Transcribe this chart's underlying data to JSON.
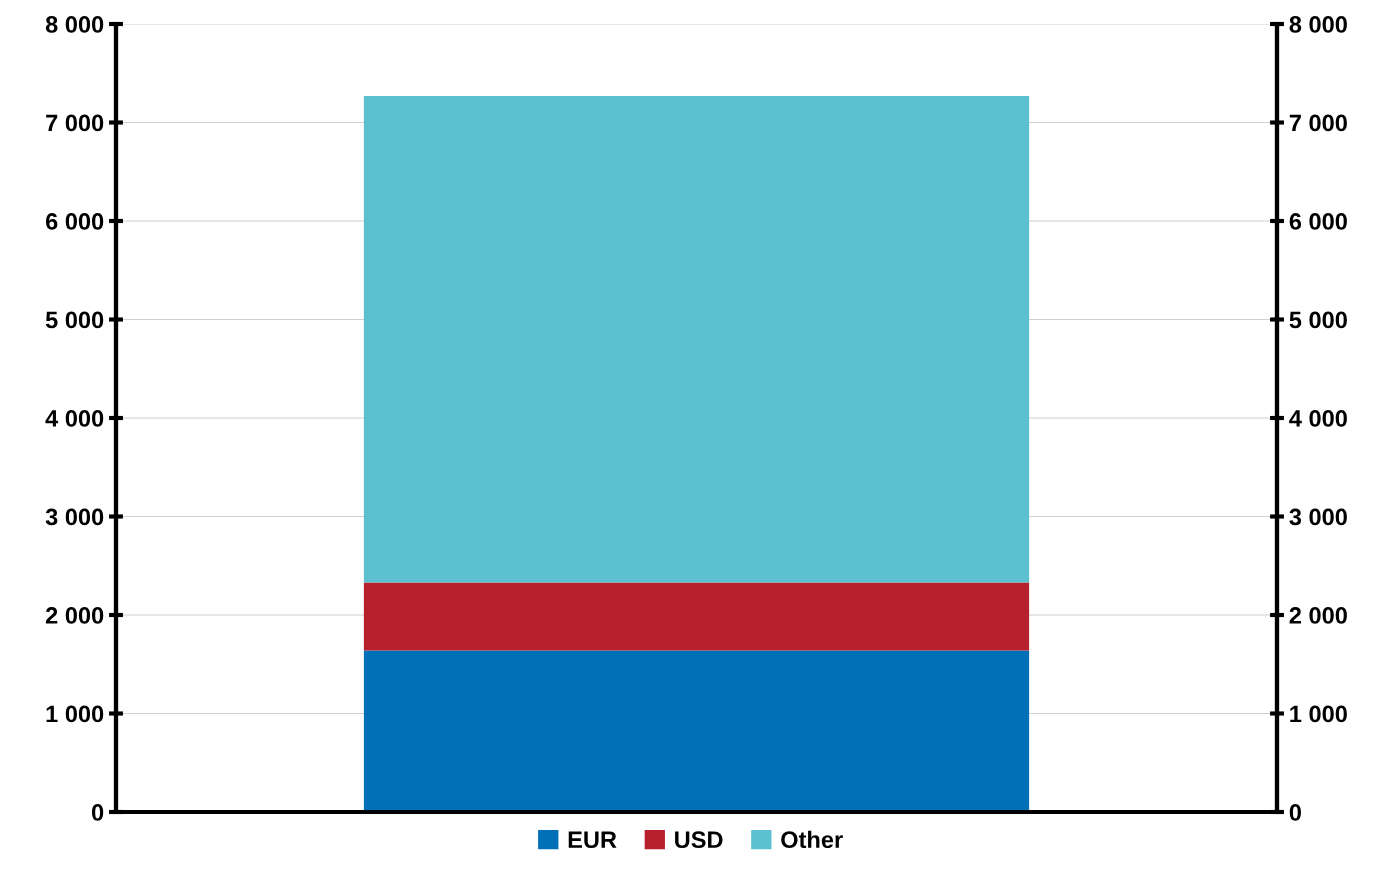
{
  "chart_data": {
    "type": "bar",
    "stacked": true,
    "categories": [
      null
    ],
    "series": [
      {
        "name": "EUR",
        "color": "#0070b8",
        "values": [
          1640
        ]
      },
      {
        "name": "USD",
        "color": "#b8202e",
        "values": [
          690
        ]
      },
      {
        "name": "Other",
        "color": "#5bc0cf",
        "values": [
          4940
        ]
      }
    ],
    "ylim": [
      0,
      8000
    ],
    "yticks": [
      0,
      {
        "value": 1000,
        "label": "1 000"
      },
      {
        "value": 2000,
        "label": "2 000"
      },
      {
        "value": 3000,
        "label": "3 000"
      },
      {
        "value": 4000,
        "label": "4 000"
      },
      {
        "value": 5000,
        "label": "5 000"
      },
      {
        "value": 6000,
        "label": "6 000"
      },
      {
        "value": 7000,
        "label": "7 000"
      },
      {
        "value": 8000,
        "label": "8 000"
      }
    ],
    "y2lim": [
      0,
      8000
    ],
    "y2ticks": [
      0,
      {
        "value": 1000,
        "label": "1 000"
      },
      {
        "value": 2000,
        "label": "2 000"
      },
      {
        "value": 3000,
        "label": "3 000"
      },
      {
        "value": 4000,
        "label": "4 000"
      },
      {
        "value": 5000,
        "label": "5 000"
      },
      {
        "value": 6000,
        "label": "6 000"
      },
      {
        "value": 7000,
        "label": "7 000"
      },
      {
        "value": 8000,
        "label": "8 000"
      }
    ],
    "grid": "y",
    "legend": "bottom"
  }
}
